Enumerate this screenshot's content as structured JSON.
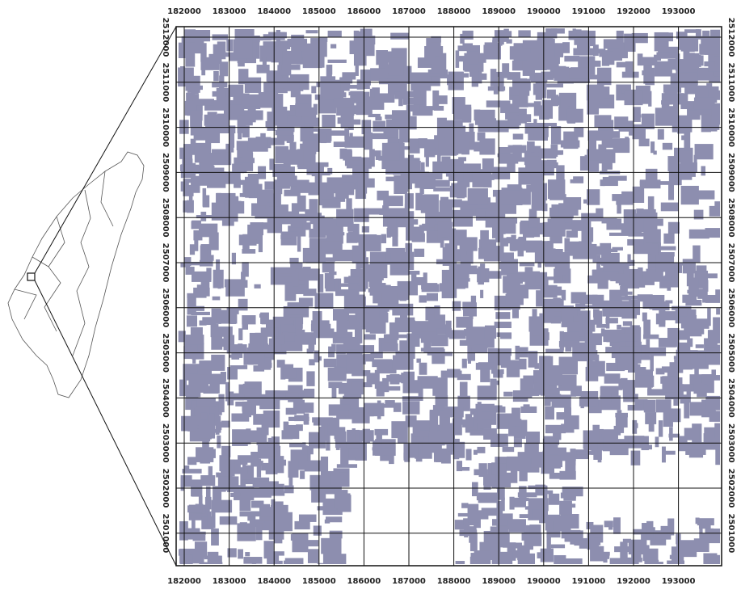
{
  "map": {
    "eastings": [
      "182000",
      "183000",
      "184000",
      "185000",
      "186000",
      "187000",
      "188000",
      "189000",
      "190000",
      "191000",
      "192000",
      "193000"
    ],
    "northings": [
      "2512000",
      "2511000",
      "2510000",
      "2509000",
      "2508000",
      "2507000",
      "2506000",
      "2505000",
      "2504000",
      "2503000",
      "2502000",
      "2501000"
    ]
  }
}
